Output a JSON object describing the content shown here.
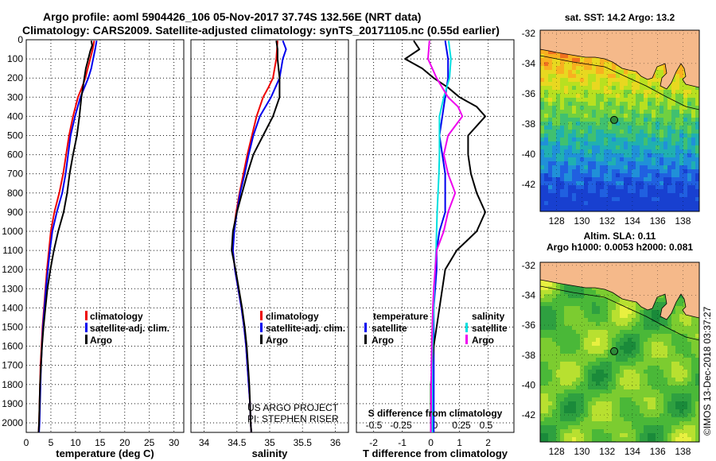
{
  "header": {
    "line1": "Argo profile: aoml 5904426_106 05-Nov-2017 37.74S 132.56E (NRT data)",
    "line2": "Climatology: CARS2009. Satellite-adjusted climatology: synTS_20171105.nc (0.55d earlier)"
  },
  "credits": {
    "project": "US ARGO PROJECT",
    "pi": "PI: STEPHEN RISER",
    "imos": "©IMOS 13-Dec-2018 03:37:27"
  },
  "maps": {
    "sst_title": "sat. SST: 14.2 Argo: 13.2",
    "sla_title1": "Altim. SLA: 0.11",
    "sla_title2": "Argo h1000: 0.0053 h2000: 0.081",
    "lat_ticks": [
      "-32",
      "-34",
      "-36",
      "-38",
      "-40",
      "-42"
    ],
    "lon_ticks": [
      "128",
      "130",
      "132",
      "134",
      "136",
      "138"
    ],
    "float_lon": 132.56,
    "float_lat": -37.74,
    "colors": {
      "land": "#f5b98a",
      "float": "#2e8b3a"
    }
  },
  "chart_data": [
    {
      "type": "line",
      "xlabel": "temperature (deg C)",
      "ylabel": "",
      "xlim": [
        0,
        32
      ],
      "ylim": [
        2050,
        0
      ],
      "x_ticks": [
        "0",
        "5",
        "10",
        "15",
        "20",
        "25",
        "30"
      ],
      "y_ticks": [
        "0",
        "100",
        "200",
        "300",
        "400",
        "500",
        "600",
        "700",
        "800",
        "900",
        "1000",
        "1100",
        "1200",
        "1300",
        "1400",
        "1500",
        "1600",
        "1700",
        "1800",
        "1900",
        "2000"
      ],
      "legend": [
        "climatology",
        "satellite-adj. clim.",
        "Argo"
      ],
      "series": [
        {
          "name": "climatology",
          "color": "#ee0000",
          "depth": [
            5,
            50,
            100,
            150,
            200,
            250,
            300,
            400,
            500,
            600,
            700,
            800,
            900,
            1000,
            1100,
            1200,
            1300,
            1400,
            1500,
            1600,
            1700,
            1800,
            1900,
            2000,
            2050
          ],
          "values": [
            13.8,
            13.5,
            13.0,
            12.5,
            12.0,
            11.3,
            10.5,
            9.5,
            8.7,
            8.1,
            7.5,
            6.7,
            5.7,
            5.0,
            4.6,
            4.2,
            3.9,
            3.6,
            3.3,
            3.1,
            2.9,
            2.8,
            2.7,
            2.6,
            2.5
          ]
        },
        {
          "name": "satellite-adj. clim.",
          "color": "#0000ee",
          "depth": [
            5,
            50,
            100,
            150,
            200,
            250,
            300,
            400,
            500,
            600,
            700,
            800,
            900,
            1000,
            1100,
            1200,
            1300,
            1400,
            1500,
            1600,
            1700,
            1800,
            1900,
            2000,
            2050
          ],
          "values": [
            14.3,
            14.0,
            13.6,
            13.2,
            12.6,
            11.8,
            11.0,
            9.9,
            9.0,
            8.5,
            8.0,
            7.3,
            6.2,
            5.3,
            4.8,
            4.4,
            4.0,
            3.7,
            3.4,
            3.2,
            3.0,
            2.9,
            2.8,
            2.7,
            2.6
          ]
        },
        {
          "name": "Argo",
          "color": "#000000",
          "depth": [
            5,
            30,
            60,
            100,
            150,
            200,
            250,
            300,
            400,
            500,
            600,
            700,
            800,
            900,
            1000,
            1100,
            1200,
            1300,
            1400,
            1500,
            1600,
            1700,
            1800,
            1900,
            2000,
            2050
          ],
          "values": [
            13.2,
            13.4,
            13.0,
            12.6,
            12.1,
            11.8,
            11.5,
            11.2,
            10.8,
            10.3,
            9.5,
            8.8,
            8.3,
            7.6,
            6.5,
            5.6,
            4.9,
            4.3,
            3.9,
            3.5,
            3.2,
            3.0,
            2.8,
            2.7,
            2.6,
            2.5
          ]
        }
      ]
    },
    {
      "type": "line",
      "xlabel": "salinity",
      "ylabel": "",
      "xlim": [
        33.8,
        36.2
      ],
      "ylim": [
        2050,
        0
      ],
      "x_ticks": [
        "34",
        "34.5",
        "35",
        "35.5",
        "36"
      ],
      "legend": [
        "climatology",
        "satellite-adj. clim.",
        "Argo"
      ],
      "series": [
        {
          "name": "climatology",
          "color": "#ee0000",
          "depth": [
            5,
            100,
            200,
            250,
            300,
            400,
            500,
            600,
            700,
            800,
            900,
            1000,
            1100,
            1200,
            1300,
            1400,
            1500,
            1600,
            1700,
            1800,
            1900,
            2000,
            2050
          ],
          "values": [
            35.12,
            35.1,
            35.05,
            34.98,
            34.9,
            34.8,
            34.73,
            34.66,
            34.6,
            34.54,
            34.49,
            34.45,
            34.44,
            34.47,
            34.52,
            34.57,
            34.61,
            34.64,
            34.66,
            34.68,
            34.7,
            34.71,
            34.72
          ]
        },
        {
          "name": "satellite-adj. clim.",
          "color": "#0000ee",
          "depth": [
            5,
            50,
            100,
            200,
            300,
            400,
            500,
            600,
            700,
            800,
            900,
            1000,
            1100,
            1200,
            1300,
            1400,
            1500,
            1600,
            1700,
            1800,
            1900,
            2000,
            2050
          ],
          "values": [
            35.2,
            35.25,
            35.2,
            35.15,
            35.02,
            34.85,
            34.75,
            34.68,
            34.62,
            34.55,
            34.5,
            34.46,
            34.44,
            34.47,
            34.52,
            34.57,
            34.61,
            34.64,
            34.66,
            34.68,
            34.7,
            34.71,
            34.72
          ]
        },
        {
          "name": "Argo",
          "color": "#000000",
          "depth": [
            5,
            50,
            100,
            200,
            300,
            400,
            500,
            600,
            700,
            800,
            900,
            1000,
            1100,
            1200,
            1300,
            1400,
            1500,
            1600,
            1700,
            1800,
            1900,
            2000,
            2050
          ],
          "values": [
            35.1,
            35.12,
            35.12,
            35.15,
            35.15,
            35.05,
            34.9,
            34.75,
            34.66,
            34.58,
            34.5,
            34.44,
            34.42,
            34.48,
            34.53,
            34.58,
            34.62,
            34.65,
            34.67,
            34.69,
            34.7,
            34.71,
            34.72
          ]
        }
      ]
    },
    {
      "type": "line",
      "xlabel": "T difference from climatology",
      "ylabel": "",
      "xlim": [
        -2.6,
        2.9
      ],
      "ylim": [
        2050,
        0
      ],
      "x_ticks": [
        "-2",
        "-1",
        "0",
        "1",
        "2"
      ],
      "secondary_axis": {
        "label": "S difference from climatology",
        "ticks": [
          "-0.5",
          "-0.25",
          "0",
          "0.25",
          "0.5"
        ]
      },
      "legend_temperature": {
        "title": "temperature",
        "entries": [
          "satellite",
          "Argo"
        ]
      },
      "legend_salinity": {
        "title": "salinity",
        "entries": [
          "satellite",
          "Argo"
        ]
      },
      "series": [
        {
          "name": "satellite",
          "color": "#0000ee",
          "depth": [
            5,
            100,
            200,
            300,
            400,
            500,
            600,
            700,
            800,
            900,
            1000,
            1100,
            1200,
            1300,
            1400,
            1500,
            1600,
            1700,
            1800,
            1900,
            2000,
            2050
          ],
          "values": [
            0.5,
            0.6,
            0.6,
            0.5,
            0.4,
            0.3,
            0.4,
            0.5,
            0.5,
            0.5,
            0.3,
            0.2,
            0.2,
            0.15,
            0.1,
            0.1,
            0.1,
            0.1,
            0.1,
            0.1,
            0.1,
            0.1
          ]
        },
        {
          "name": "Argo",
          "color": "#000000",
          "depth": [
            5,
            50,
            100,
            150,
            200,
            250,
            300,
            350,
            400,
            450,
            500,
            600,
            700,
            800,
            900,
            1000,
            1100,
            1200,
            1300,
            1400,
            1500,
            1600,
            1700,
            1800,
            1900,
            2000,
            2050
          ],
          "values": [
            -0.6,
            -0.4,
            -0.9,
            -0.3,
            0.1,
            0.6,
            1.0,
            1.6,
            1.9,
            1.6,
            1.3,
            1.3,
            1.4,
            1.6,
            1.9,
            1.6,
            0.9,
            0.5,
            0.4,
            0.3,
            0.2,
            0.1,
            0.05,
            0.0,
            0.0,
            0.0,
            0.0
          ]
        },
        {
          "name": "satellite",
          "color": "#00e0e0",
          "depth": [
            5,
            100,
            200,
            300,
            400,
            500,
            600,
            700,
            800,
            900,
            1000,
            1100,
            1200,
            1300,
            1400,
            1500,
            1600,
            1700,
            1800,
            1900,
            2000,
            2050
          ],
          "values": [
            0.62,
            0.7,
            0.65,
            0.45,
            0.3,
            0.3,
            0.3,
            0.28,
            0.25,
            0.22,
            0.2,
            0.18,
            0.15,
            0.12,
            0.1,
            0.08,
            0.06,
            0.05,
            0.05,
            0.05,
            0.05,
            0.05
          ]
        },
        {
          "name": "Argo",
          "color": "#ee00ee",
          "depth": [
            5,
            100,
            200,
            300,
            350,
            400,
            450,
            500,
            600,
            700,
            800,
            900,
            1000,
            1100,
            1200,
            1300,
            1400,
            1500,
            1600,
            1700,
            1800,
            1900,
            2000,
            2050
          ],
          "values": [
            -0.05,
            -0.1,
            0.2,
            0.6,
            0.95,
            1.1,
            0.85,
            0.6,
            0.45,
            0.6,
            0.85,
            0.6,
            0.45,
            0.2,
            0.15,
            0.1,
            0.07,
            0.05,
            0.03,
            0.02,
            0.01,
            0.01,
            0.0,
            0.0
          ]
        }
      ]
    }
  ]
}
